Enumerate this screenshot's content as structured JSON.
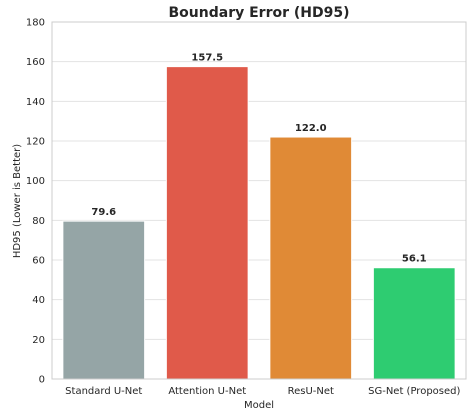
{
  "chart_data": {
    "type": "bar",
    "title": "Boundary Error (HD95)",
    "xlabel": "Model",
    "ylabel": "HD95 (Lower is Better)",
    "categories": [
      "Standard U-Net",
      "Attention U-Net",
      "ResU-Net",
      "SG-Net (Proposed)"
    ],
    "values": [
      79.6,
      157.5,
      122.0,
      56.1
    ],
    "value_labels": [
      "79.6",
      "157.5",
      "122.0",
      "56.1"
    ],
    "colors": [
      "#95a5a6",
      "#e05a4a",
      "#e08a36",
      "#2ecc71"
    ],
    "ylim": [
      0,
      180
    ],
    "yticks": [
      0,
      20,
      40,
      60,
      80,
      100,
      120,
      140,
      160,
      180
    ],
    "grid": true,
    "grid_axis": "y",
    "legend": false
  }
}
